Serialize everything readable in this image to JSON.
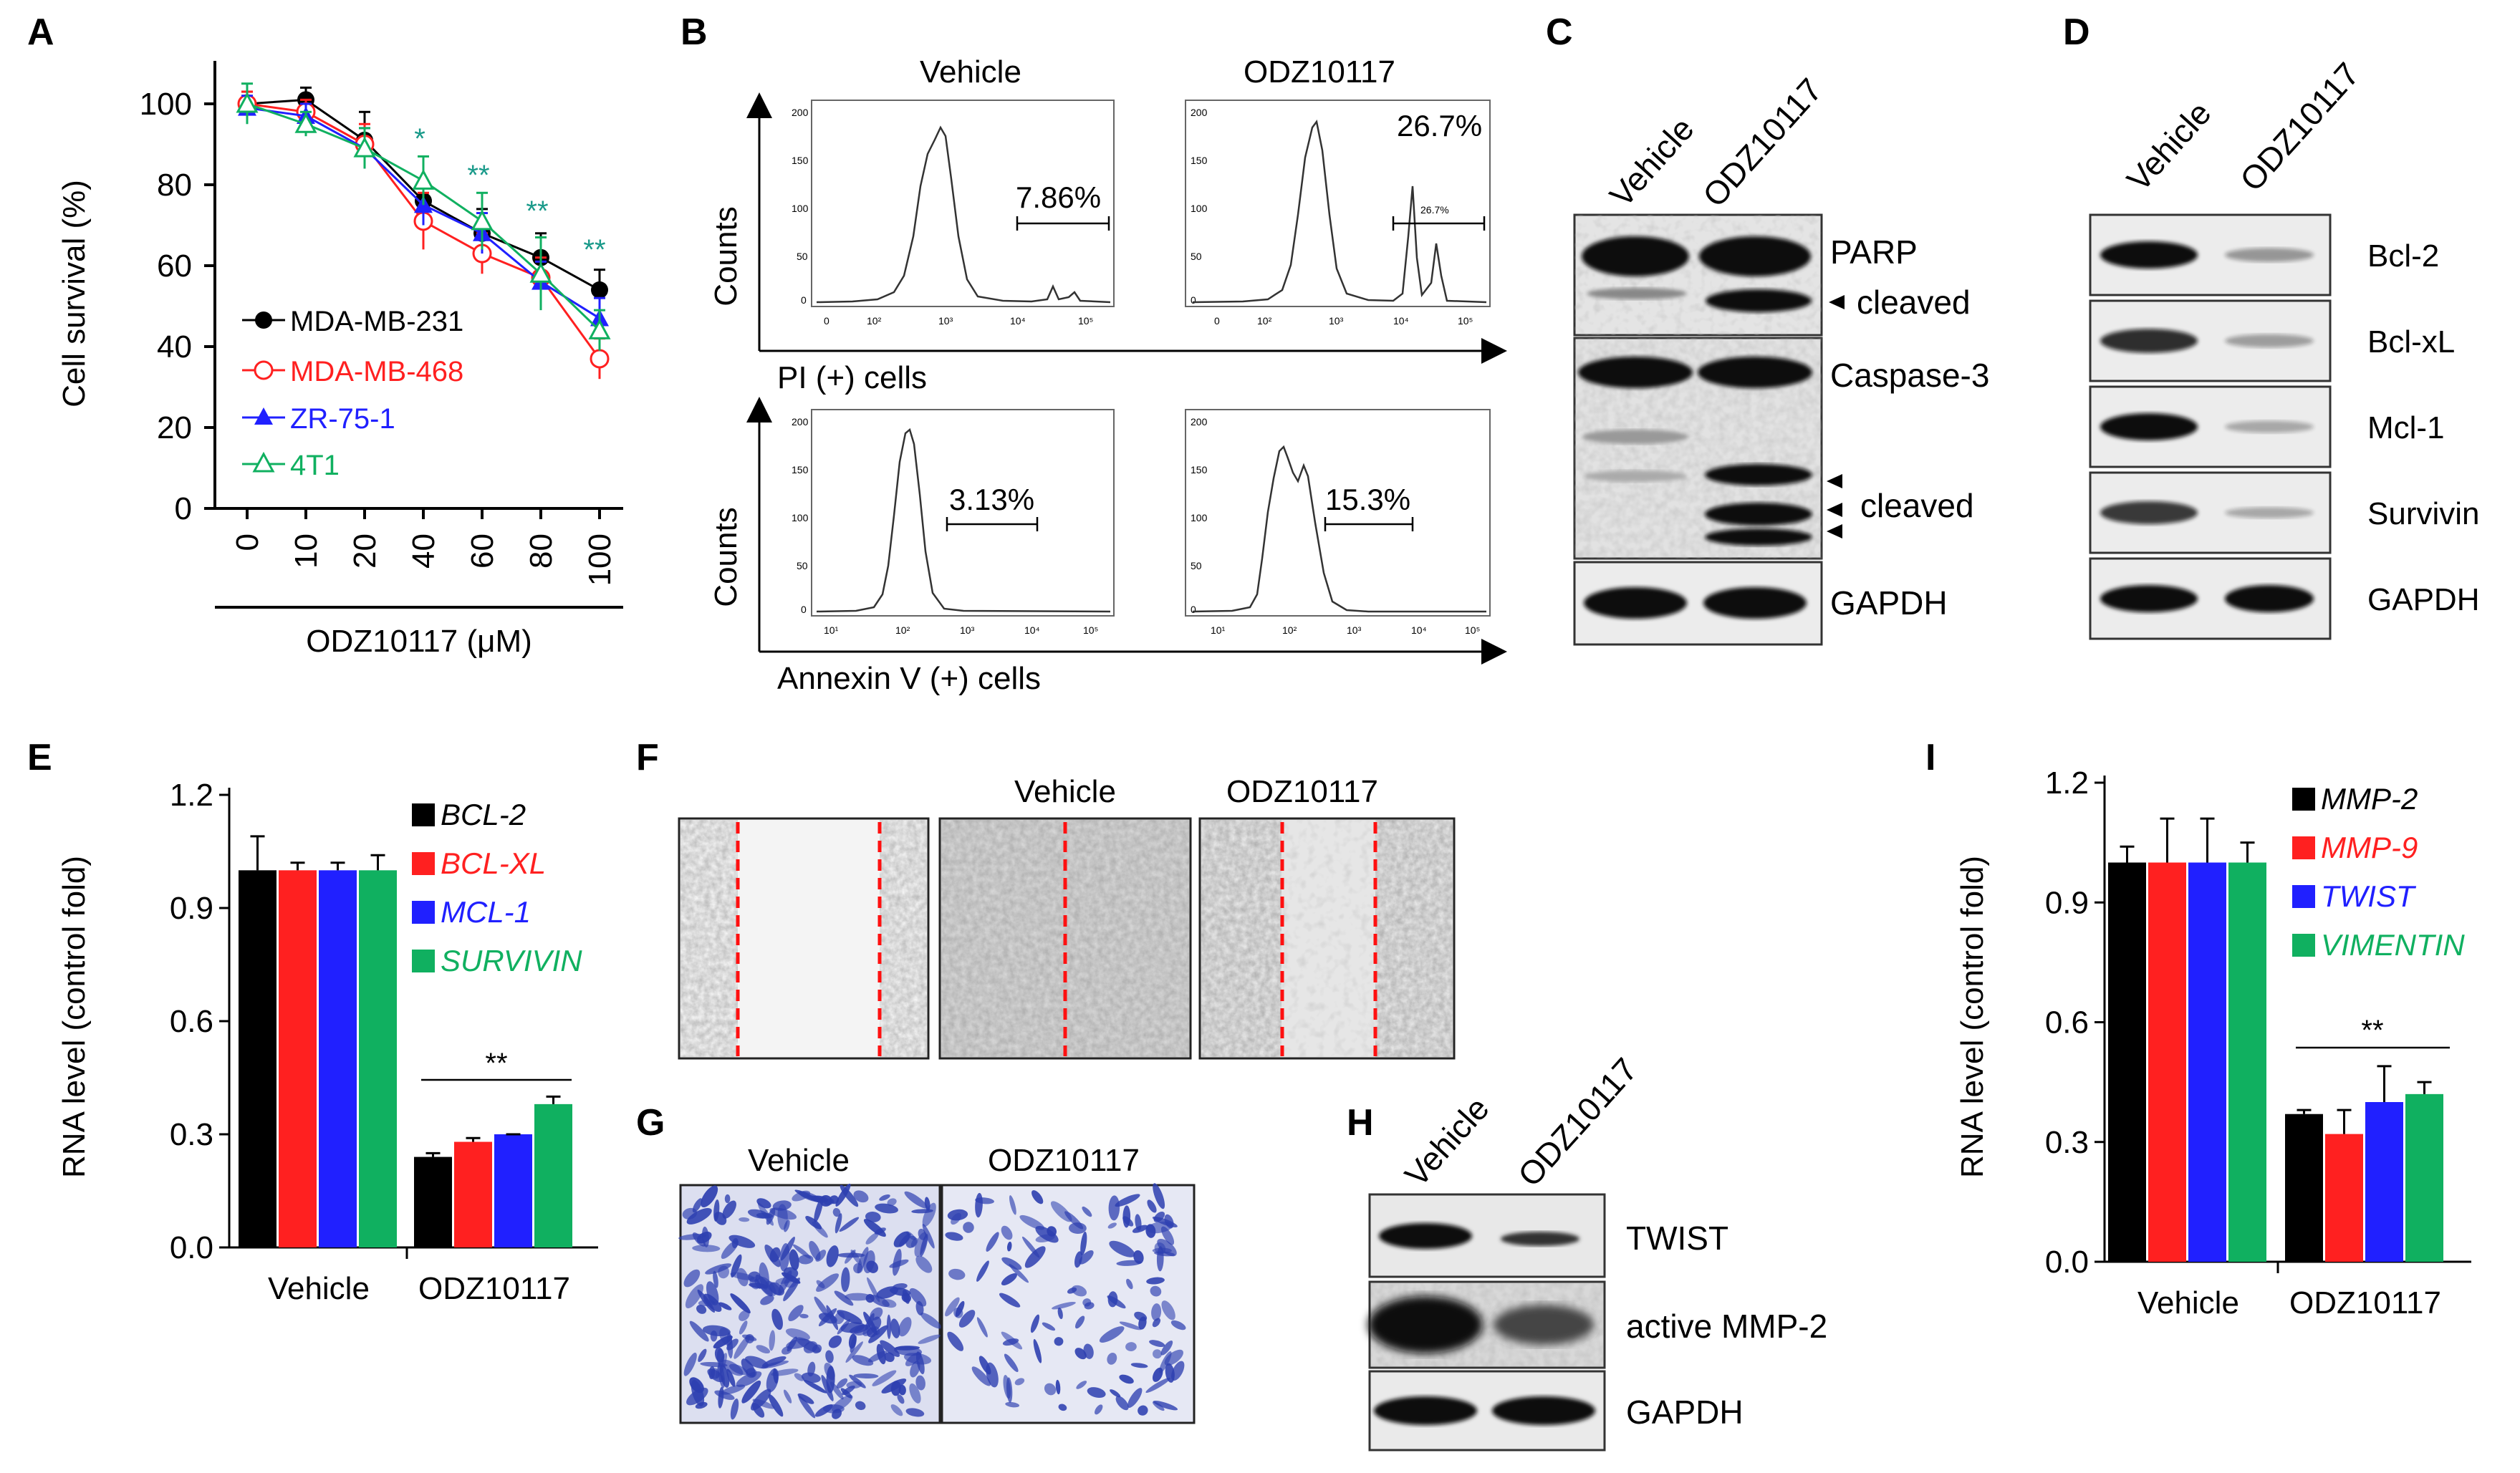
{
  "panel_letters": [
    "A",
    "B",
    "C",
    "D",
    "E",
    "F",
    "G",
    "H",
    "I"
  ],
  "colors": {
    "black": "#000000",
    "red": "#ff2020",
    "blue": "#2020ff",
    "green": "#10b060",
    "cyan": "#00b070",
    "pink": "#ff3a3a"
  },
  "panelA": {
    "ylabel": "Cell survival (%)",
    "xlabel": "ODZ10117 (μM)",
    "legend": [
      {
        "name": "MDA-MB-231",
        "color": "#000000",
        "marker": "filled-circle"
      },
      {
        "name": "MDA-MB-468",
        "color": "#ff2020",
        "marker": "open-circle"
      },
      {
        "name": "ZR-75-1",
        "color": "#2020ff",
        "marker": "filled-triangle"
      },
      {
        "name": "4T1",
        "color": "#10b060",
        "marker": "open-triangle"
      }
    ],
    "sig": [
      "*",
      "**",
      "**",
      "**"
    ]
  },
  "panelB": {
    "vehicle": "Vehicle",
    "treated": "ODZ10117",
    "counts": "Counts",
    "pi_label": "PI (+) cells",
    "annexin_label": "Annexin V (+) cells",
    "pi_vehicle_pct": "7.86%",
    "pi_treated_pct": "26.7%",
    "pi_treated_small_pct": "26.7%",
    "ann_vehicle_pct": "3.13%",
    "ann_treated_pct": "15.3%",
    "pi_ticks": [
      "200",
      "150",
      "100",
      "50",
      "0"
    ],
    "x_ticks": [
      "0",
      "10²",
      "10³",
      "10⁴",
      "10⁵"
    ],
    "ann_x_ticks": [
      "10¹",
      "10²",
      "10³",
      "10⁴",
      "10⁵"
    ]
  },
  "panelC": {
    "lanes": [
      "Vehicle",
      "ODZ10117"
    ],
    "labels": [
      "PARP",
      "cleaved",
      "Caspase-3",
      "cleaved",
      "GAPDH"
    ]
  },
  "panelD": {
    "lanes": [
      "Vehicle",
      "ODZ10117"
    ],
    "labels": [
      "Bcl-2",
      "Bcl-xL",
      "Mcl-1",
      "Survivin",
      "GAPDH"
    ]
  },
  "panelE": {
    "ylabel": "RNA level (control fold)",
    "legend": [
      {
        "name": "BCL-2",
        "color": "#000000"
      },
      {
        "name": "BCL-XL",
        "color": "#ff2020"
      },
      {
        "name": "MCL-1",
        "color": "#2020ff"
      },
      {
        "name": "SURVIVIN",
        "color": "#10b060"
      }
    ],
    "sig": "**"
  },
  "panelF": {
    "vehicle": "Vehicle",
    "treated": "ODZ10117"
  },
  "panelG": {
    "vehicle": "Vehicle",
    "treated": "ODZ10117"
  },
  "panelH": {
    "lanes": [
      "Vehicle",
      "ODZ10117"
    ],
    "labels": [
      "TWIST",
      "active MMP-2",
      "GAPDH"
    ]
  },
  "panelI": {
    "ylabel": "RNA level (control fold)",
    "legend": [
      {
        "name": "MMP-2",
        "color": "#000000"
      },
      {
        "name": "MMP-9",
        "color": "#ff2020"
      },
      {
        "name": "TWIST",
        "color": "#2020ff"
      },
      {
        "name": "VIMENTIN",
        "color": "#10b060"
      }
    ],
    "sig": "**"
  },
  "chart_data": [
    {
      "type": "line",
      "panel": "A",
      "x": [
        0,
        10,
        20,
        40,
        60,
        80,
        100
      ],
      "ylim": [
        0,
        100
      ],
      "yticks": [
        0,
        20,
        40,
        60,
        80,
        100
      ],
      "series": [
        {
          "name": "MDA-MB-231",
          "values": [
            100,
            101,
            91,
            76,
            68,
            62,
            54
          ]
        },
        {
          "name": "MDA-MB-468",
          "values": [
            100,
            98,
            90,
            71,
            63,
            57,
            37
          ]
        },
        {
          "name": "ZR-75-1",
          "values": [
            99,
            97,
            89,
            75,
            68,
            56,
            47
          ]
        },
        {
          "name": "4T1",
          "values": [
            100,
            95,
            89,
            81,
            71,
            58,
            44
          ]
        }
      ]
    },
    {
      "type": "bar",
      "panel": "E",
      "categories": [
        "Vehicle",
        "ODZ10117"
      ],
      "ylim": [
        0,
        1.2
      ],
      "yticks": [
        "0.0",
        "0.3",
        "0.6",
        "0.9",
        "1.2"
      ],
      "series": [
        {
          "name": "BCL-2",
          "values": [
            1.0,
            0.24
          ],
          "errors": [
            0.09,
            0.01
          ]
        },
        {
          "name": "BCL-XL",
          "values": [
            1.0,
            0.28
          ],
          "errors": [
            0.02,
            0.01
          ]
        },
        {
          "name": "MCL-1",
          "values": [
            1.0,
            0.3
          ],
          "errors": [
            0.02,
            0.0
          ]
        },
        {
          "name": "SURVIVIN",
          "values": [
            1.0,
            0.38
          ],
          "errors": [
            0.04,
            0.02
          ]
        }
      ]
    },
    {
      "type": "bar",
      "panel": "I",
      "categories": [
        "Vehicle",
        "ODZ10117"
      ],
      "ylim": [
        0,
        1.2
      ],
      "yticks": [
        "0.0",
        "0.3",
        "0.6",
        "0.9",
        "1.2"
      ],
      "series": [
        {
          "name": "MMP-2",
          "values": [
            1.0,
            0.37
          ],
          "errors": [
            0.04,
            0.01
          ]
        },
        {
          "name": "MMP-9",
          "values": [
            1.0,
            0.32
          ],
          "errors": [
            0.11,
            0.06
          ]
        },
        {
          "name": "TWIST",
          "values": [
            1.0,
            0.4
          ],
          "errors": [
            0.11,
            0.09
          ]
        },
        {
          "name": "VIMENTIN",
          "values": [
            1.0,
            0.42
          ],
          "errors": [
            0.05,
            0.03
          ]
        }
      ]
    }
  ]
}
